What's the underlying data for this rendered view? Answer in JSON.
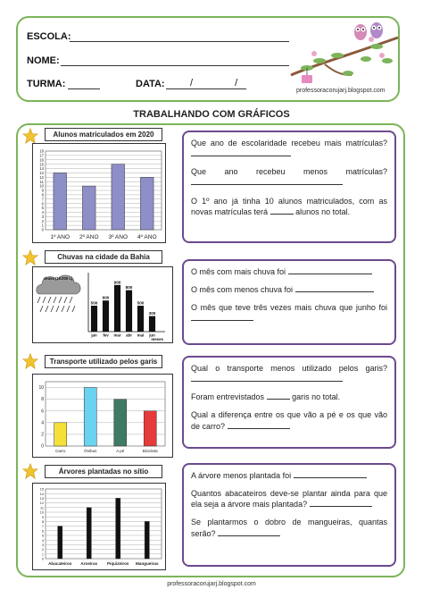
{
  "header": {
    "escola_label": "ESCOLA:",
    "nome_label": "NOME:",
    "turma_label": "TURMA:",
    "data_label": "DATA:",
    "date_slashes": "/ /",
    "blog": "professoracorujarj.blogspot.com"
  },
  "page_title": "TRABALHANDO COM GRÁFICOS",
  "footer": "professoracorujarj.blogspot.com",
  "sections": {
    "s1": {
      "chart_title": "Alunos matriculados em 2020",
      "q1": "Que ano de escolaridade recebeu mais matrículas?",
      "q2": "Que ano recebeu menos matrículas?",
      "q3_a": "O 1º ano já tinha 10 alunos matriculados, com as novas matrículas terá",
      "q3_b": "alunos no total."
    },
    "s2": {
      "chart_title": "Chuvas na cidade da Bahia",
      "cloud_label": "chuva (10.000 L)",
      "axis_label": "meses",
      "q1": "O mês com mais chuva foi",
      "q2": "O mês com menos chuva foi",
      "q3": "O mês que teve três vezes mais chuva que junho foi"
    },
    "s3": {
      "chart_title": "Transporte utilizado pelos garis",
      "q1": "Qual o transporte menos utilizado pelos garis?",
      "q2_a": "Foram entrevistados",
      "q2_b": "garis no total.",
      "q3": "Qual a diferença entre os que vão a pé e os que vão de carro?"
    },
    "s4": {
      "chart_title": "Árvores plantadas no sítio",
      "q1": "A árvore menos plantada foi",
      "q2": "Quantos abacateiros deve-se plantar ainda para que ela seja a árvore mais plantada?",
      "q3": "Se plantarmos o dobro de mangueiras, quantas serão?"
    }
  },
  "colors": {
    "green_border": "#7cb45a",
    "purple_border": "#6b4a8f",
    "star": "#f2c230"
  },
  "chart_data": [
    {
      "type": "bar",
      "title": "Alunos matriculados em 2020",
      "categories": [
        "1º ANO",
        "2º ANO",
        "3º ANO",
        "4º ANO"
      ],
      "values": [
        13,
        10,
        15,
        12
      ],
      "ylim": [
        0,
        18
      ],
      "yticks": [
        "0",
        "1",
        "2",
        "3",
        "4",
        "5",
        "6",
        "7",
        "8",
        "9",
        "10",
        "11",
        "12",
        "13",
        "14",
        "15",
        "16",
        "17",
        "18"
      ],
      "color": "#8e8ec8"
    },
    {
      "type": "bar",
      "title": "Chuvas na cidade da Bahia",
      "categories": [
        "jan",
        "fev",
        "mar",
        "abr",
        "mai",
        "jun"
      ],
      "values": [
        500,
        600,
        900,
        800,
        500,
        300
      ],
      "data_labels": [
        "500",
        "600",
        "900",
        "800",
        "500",
        "300"
      ],
      "xlabel": "meses",
      "ylim": [
        0,
        1000
      ],
      "color": "#111111"
    },
    {
      "type": "bar",
      "title": "Transporte utilizado pelos garis",
      "categories": [
        "Carro",
        "Ônibus",
        "A pé",
        "Bicicleta"
      ],
      "values": [
        4,
        10,
        8,
        6
      ],
      "yticks": [
        "0",
        "2",
        "4",
        "6",
        "8",
        "10"
      ],
      "ylim": [
        0,
        11
      ],
      "colors": [
        "#f5e03a",
        "#6ad3f0",
        "#3f7a63",
        "#e53b3b"
      ]
    },
    {
      "type": "bar",
      "title": "Árvores plantadas no sítio",
      "categories": [
        "Abacateiros",
        "Aroeiras",
        "Piquizeiros",
        "Mangueiras"
      ],
      "values": [
        7,
        11,
        13,
        8
      ],
      "yticks": [
        "0",
        "1",
        "2",
        "3",
        "4",
        "5",
        "6",
        "7",
        "8",
        "9",
        "10",
        "11",
        "12",
        "13",
        "14",
        "15"
      ],
      "ylim": [
        0,
        15
      ],
      "color": "#111111"
    }
  ]
}
